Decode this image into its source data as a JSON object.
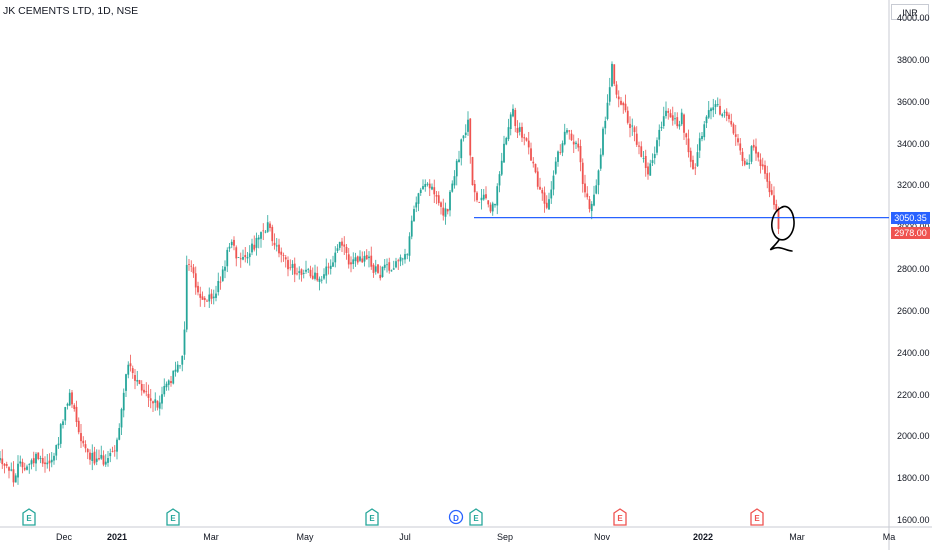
{
  "header": {
    "title": "JK CEMENTS LTD, 1D, NSE",
    "unit": "INR"
  },
  "price_tags": {
    "level": "3050.35",
    "last": "2978.00"
  },
  "colors": {
    "up": "#26a69a",
    "down": "#ef5350",
    "level": "#2962ff",
    "axis": "#c8cbd3"
  },
  "chart_data": {
    "type": "candlestick",
    "title": "JK CEMENTS LTD, 1D, NSE",
    "ylabel": "INR",
    "ylim": [
      1585,
      4020
    ],
    "y_ticks": [
      "1600.00",
      "1800.00",
      "2000.00",
      "2200.00",
      "2400.00",
      "2600.00",
      "2800.00",
      "3000.00",
      "3200.00",
      "3400.00",
      "3600.00",
      "3800.00",
      "4000.00"
    ],
    "x_ticks": [
      {
        "label": "Dec",
        "bold": false
      },
      {
        "label": "2021",
        "bold": true
      },
      {
        "label": "Mar",
        "bold": false
      },
      {
        "label": "May",
        "bold": false
      },
      {
        "label": "Jul",
        "bold": false
      },
      {
        "label": "Sep",
        "bold": false
      },
      {
        "label": "Nov",
        "bold": false
      },
      {
        "label": "2022",
        "bold": true
      },
      {
        "label": "Mar",
        "bold": false
      },
      {
        "label": "Ma",
        "bold": false
      }
    ],
    "price_path": [
      [
        0,
        1900
      ],
      [
        8,
        1860
      ],
      [
        14,
        1800
      ],
      [
        20,
        1870
      ],
      [
        30,
        1870
      ],
      [
        38,
        1920
      ],
      [
        46,
        1880
      ],
      [
        52,
        1890
      ],
      [
        56,
        1950
      ],
      [
        64,
        2100
      ],
      [
        70,
        2200
      ],
      [
        76,
        2100
      ],
      [
        82,
        1980
      ],
      [
        90,
        1920
      ],
      [
        96,
        1880
      ],
      [
        102,
        1890
      ],
      [
        108,
        1910
      ],
      [
        114,
        1940
      ],
      [
        120,
        2050
      ],
      [
        124,
        2250
      ],
      [
        128,
        2350
      ],
      [
        134,
        2280
      ],
      [
        140,
        2230
      ],
      [
        146,
        2200
      ],
      [
        152,
        2180
      ],
      [
        158,
        2140
      ],
      [
        162,
        2210
      ],
      [
        168,
        2260
      ],
      [
        174,
        2300
      ],
      [
        180,
        2350
      ],
      [
        184,
        2450
      ],
      [
        186,
        2800
      ],
      [
        190,
        2850
      ],
      [
        196,
        2720
      ],
      [
        202,
        2650
      ],
      [
        210,
        2660
      ],
      [
        218,
        2720
      ],
      [
        224,
        2800
      ],
      [
        230,
        2950
      ],
      [
        236,
        2880
      ],
      [
        242,
        2860
      ],
      [
        248,
        2890
      ],
      [
        256,
        2930
      ],
      [
        262,
        2960
      ],
      [
        268,
        3010
      ],
      [
        272,
        2950
      ],
      [
        278,
        2900
      ],
      [
        284,
        2840
      ],
      [
        290,
        2820
      ],
      [
        296,
        2800
      ],
      [
        304,
        2790
      ],
      [
        312,
        2780
      ],
      [
        320,
        2770
      ],
      [
        328,
        2800
      ],
      [
        334,
        2850
      ],
      [
        340,
        2920
      ],
      [
        346,
        2870
      ],
      [
        352,
        2830
      ],
      [
        358,
        2840
      ],
      [
        366,
        2860
      ],
      [
        372,
        2820
      ],
      [
        378,
        2780
      ],
      [
        384,
        2800
      ],
      [
        390,
        2820
      ],
      [
        396,
        2840
      ],
      [
        402,
        2870
      ],
      [
        408,
        2890
      ],
      [
        412,
        3030
      ],
      [
        418,
        3150
      ],
      [
        424,
        3240
      ],
      [
        430,
        3190
      ],
      [
        436,
        3150
      ],
      [
        442,
        3060
      ],
      [
        448,
        3100
      ],
      [
        452,
        3200
      ],
      [
        458,
        3320
      ],
      [
        462,
        3420
      ],
      [
        468,
        3510
      ],
      [
        470,
        3340
      ],
      [
        474,
        3150
      ],
      [
        478,
        3120
      ],
      [
        484,
        3180
      ],
      [
        490,
        3090
      ],
      [
        496,
        3140
      ],
      [
        502,
        3350
      ],
      [
        508,
        3500
      ],
      [
        512,
        3580
      ],
      [
        518,
        3460
      ],
      [
        524,
        3450
      ],
      [
        530,
        3350
      ],
      [
        536,
        3250
      ],
      [
        542,
        3160
      ],
      [
        548,
        3100
      ],
      [
        554,
        3260
      ],
      [
        560,
        3380
      ],
      [
        566,
        3500
      ],
      [
        572,
        3420
      ],
      [
        578,
        3380
      ],
      [
        584,
        3200
      ],
      [
        590,
        3110
      ],
      [
        596,
        3200
      ],
      [
        602,
        3420
      ],
      [
        608,
        3620
      ],
      [
        612,
        3780
      ],
      [
        616,
        3650
      ],
      [
        620,
        3620
      ],
      [
        626,
        3560
      ],
      [
        630,
        3490
      ],
      [
        636,
        3420
      ],
      [
        642,
        3330
      ],
      [
        648,
        3260
      ],
      [
        654,
        3350
      ],
      [
        660,
        3480
      ],
      [
        666,
        3560
      ],
      [
        670,
        3510
      ],
      [
        676,
        3500
      ],
      [
        682,
        3530
      ],
      [
        688,
        3390
      ],
      [
        694,
        3280
      ],
      [
        700,
        3420
      ],
      [
        704,
        3490
      ],
      [
        710,
        3560
      ],
      [
        716,
        3580
      ],
      [
        722,
        3540
      ],
      [
        726,
        3580
      ],
      [
        730,
        3490
      ],
      [
        736,
        3440
      ],
      [
        742,
        3320
      ],
      [
        748,
        3280
      ],
      [
        752,
        3380
      ],
      [
        756,
        3340
      ],
      [
        760,
        3320
      ],
      [
        764,
        3270
      ],
      [
        768,
        3200
      ],
      [
        772,
        3150
      ],
      [
        776,
        3090
      ],
      [
        780,
        2978
      ]
    ],
    "level_line": {
      "value": 3050.35,
      "from_x_label": "Aug",
      "note": "horizontal support line"
    },
    "last_price": 2978.0,
    "event_markers": [
      {
        "type": "E",
        "color": "#26a69a"
      },
      {
        "type": "E",
        "color": "#26a69a"
      },
      {
        "type": "E",
        "color": "#26a69a"
      },
      {
        "type": "D",
        "color": "#2962ff"
      },
      {
        "type": "E",
        "color": "#26a69a"
      },
      {
        "type": "E",
        "color": "#ef5350"
      },
      {
        "type": "E",
        "color": "#ef5350"
      }
    ]
  }
}
